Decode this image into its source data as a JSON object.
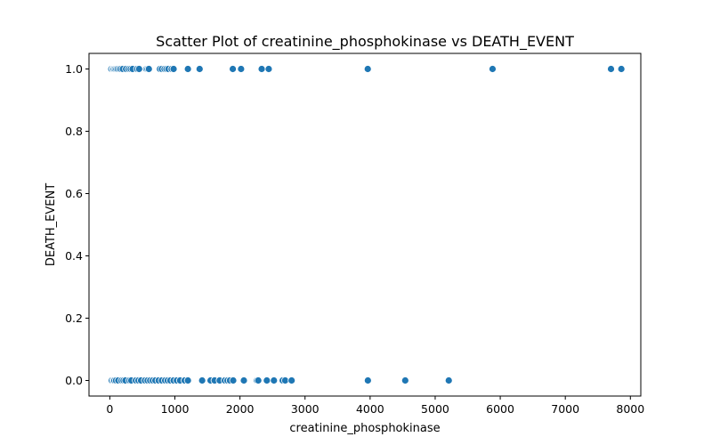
{
  "chart_data": {
    "type": "scatter",
    "title": "Scatter Plot of creatinine_phosphokinase vs DEATH_EVENT",
    "xlabel": "creatinine_phosphokinase",
    "ylabel": "DEATH_EVENT",
    "xlim": [
      -320,
      8160
    ],
    "ylim": [
      -0.05,
      1.05
    ],
    "xticks": [
      0,
      1000,
      2000,
      3000,
      4000,
      5000,
      6000,
      7000,
      8000
    ],
    "xtick_labels": [
      "0",
      "1000",
      "2000",
      "3000",
      "4000",
      "5000",
      "6000",
      "7000",
      "8000"
    ],
    "yticks": [
      0.0,
      0.2,
      0.4,
      0.6,
      0.8,
      1.0
    ],
    "ytick_labels": [
      "0.0",
      "0.2",
      "0.4",
      "0.6",
      "0.8",
      "1.0"
    ],
    "grid": false,
    "marker_color": "#1f77b4",
    "marker_edge": "#ffffff",
    "points": [
      {
        "x": 23,
        "y": 1
      },
      {
        "x": 47,
        "y": 1
      },
      {
        "x": 60,
        "y": 1
      },
      {
        "x": 80,
        "y": 1
      },
      {
        "x": 100,
        "y": 1
      },
      {
        "x": 120,
        "y": 1
      },
      {
        "x": 146,
        "y": 1
      },
      {
        "x": 170,
        "y": 1
      },
      {
        "x": 200,
        "y": 1
      },
      {
        "x": 250,
        "y": 1
      },
      {
        "x": 290,
        "y": 1
      },
      {
        "x": 320,
        "y": 1
      },
      {
        "x": 350,
        "y": 1
      },
      {
        "x": 420,
        "y": 1
      },
      {
        "x": 450,
        "y": 1
      },
      {
        "x": 560,
        "y": 1
      },
      {
        "x": 580,
        "y": 1
      },
      {
        "x": 600,
        "y": 1
      },
      {
        "x": 770,
        "y": 1
      },
      {
        "x": 800,
        "y": 1
      },
      {
        "x": 840,
        "y": 1
      },
      {
        "x": 870,
        "y": 1
      },
      {
        "x": 900,
        "y": 1
      },
      {
        "x": 950,
        "y": 1
      },
      {
        "x": 980,
        "y": 1
      },
      {
        "x": 1200,
        "y": 1
      },
      {
        "x": 1380,
        "y": 1
      },
      {
        "x": 1890,
        "y": 1
      },
      {
        "x": 2017,
        "y": 1
      },
      {
        "x": 2334,
        "y": 1
      },
      {
        "x": 2442,
        "y": 1
      },
      {
        "x": 3964,
        "y": 1
      },
      {
        "x": 5882,
        "y": 1
      },
      {
        "x": 7702,
        "y": 1
      },
      {
        "x": 7861,
        "y": 1
      },
      {
        "x": 30,
        "y": 0
      },
      {
        "x": 55,
        "y": 0
      },
      {
        "x": 70,
        "y": 0
      },
      {
        "x": 95,
        "y": 0
      },
      {
        "x": 130,
        "y": 0
      },
      {
        "x": 180,
        "y": 0
      },
      {
        "x": 210,
        "y": 0
      },
      {
        "x": 240,
        "y": 0
      },
      {
        "x": 300,
        "y": 0
      },
      {
        "x": 330,
        "y": 0
      },
      {
        "x": 400,
        "y": 0
      },
      {
        "x": 440,
        "y": 0
      },
      {
        "x": 480,
        "y": 0
      },
      {
        "x": 540,
        "y": 0
      },
      {
        "x": 580,
        "y": 0
      },
      {
        "x": 620,
        "y": 0
      },
      {
        "x": 660,
        "y": 0
      },
      {
        "x": 700,
        "y": 0
      },
      {
        "x": 750,
        "y": 0
      },
      {
        "x": 800,
        "y": 0
      },
      {
        "x": 850,
        "y": 0
      },
      {
        "x": 890,
        "y": 0
      },
      {
        "x": 930,
        "y": 0
      },
      {
        "x": 980,
        "y": 0
      },
      {
        "x": 1030,
        "y": 0
      },
      {
        "x": 1080,
        "y": 0
      },
      {
        "x": 1150,
        "y": 0
      },
      {
        "x": 1200,
        "y": 0
      },
      {
        "x": 1419,
        "y": 0
      },
      {
        "x": 1548,
        "y": 0
      },
      {
        "x": 1610,
        "y": 0
      },
      {
        "x": 1688,
        "y": 0
      },
      {
        "x": 1767,
        "y": 0
      },
      {
        "x": 1808,
        "y": 0
      },
      {
        "x": 1846,
        "y": 0
      },
      {
        "x": 1896,
        "y": 0
      },
      {
        "x": 2060,
        "y": 0
      },
      {
        "x": 2261,
        "y": 0
      },
      {
        "x": 2281,
        "y": 0
      },
      {
        "x": 2413,
        "y": 0
      },
      {
        "x": 2522,
        "y": 0
      },
      {
        "x": 2656,
        "y": 0
      },
      {
        "x": 2695,
        "y": 0
      },
      {
        "x": 2794,
        "y": 0
      },
      {
        "x": 3966,
        "y": 0
      },
      {
        "x": 4540,
        "y": 0
      },
      {
        "x": 5209,
        "y": 0
      }
    ]
  }
}
